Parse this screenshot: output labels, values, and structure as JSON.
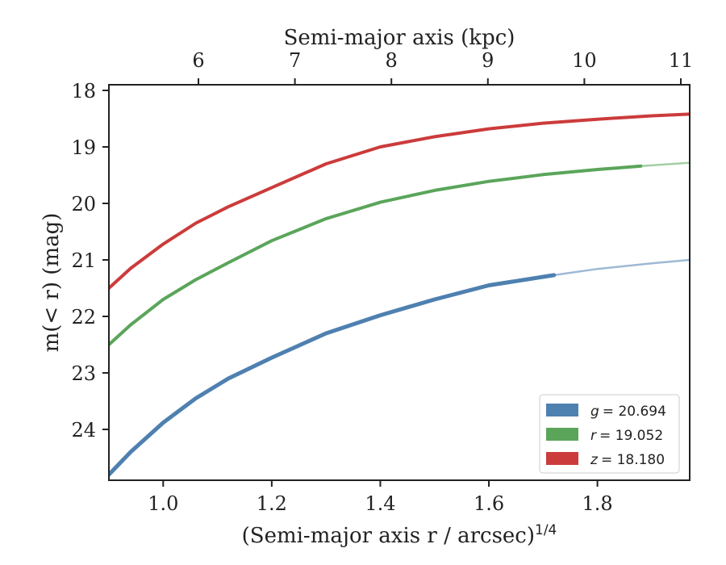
{
  "chart_data": {
    "type": "line",
    "xlabel": "(Semi-major axis r / arcsec)",
    "xlabel_sup": "1/4",
    "ylabel": "m(< r) (mag)",
    "top_xlabel": "Semi-major axis (kpc)",
    "xlim": [
      0.9,
      1.97
    ],
    "ylim": [
      24.9,
      17.9
    ],
    "y_inverted": true,
    "x_ticks": [
      "1.0",
      "1.2",
      "1.4",
      "1.6",
      "1.8"
    ],
    "y_ticks": [
      "18",
      "19",
      "20",
      "21",
      "22",
      "23",
      "24"
    ],
    "top_ticks": [
      "6",
      "7",
      "8",
      "9",
      "10",
      "11"
    ],
    "top_tick_values_kpc": [
      6,
      7,
      8,
      9,
      10,
      11
    ],
    "legend_position": "lower-right",
    "series": [
      {
        "name": "g = 20.694",
        "legend_symbol": "g",
        "legend_value": "= 20.694",
        "color": "#4e80b0",
        "x": [
          0.9,
          0.94,
          1.0,
          1.06,
          1.12,
          1.2,
          1.3,
          1.4,
          1.5,
          1.6,
          1.72,
          1.8,
          1.9,
          1.97
        ],
        "y": [
          24.8,
          24.4,
          23.88,
          23.45,
          23.1,
          22.73,
          22.3,
          21.98,
          21.7,
          21.45,
          21.27,
          21.16,
          21.06,
          21.0
        ],
        "solid_until_x": 1.72
      },
      {
        "name": "r = 19.052",
        "legend_symbol": "r",
        "legend_value": "= 19.052",
        "color": "#5aa55a",
        "x": [
          0.9,
          0.94,
          1.0,
          1.06,
          1.12,
          1.2,
          1.3,
          1.4,
          1.5,
          1.6,
          1.7,
          1.8,
          1.88,
          1.97
        ],
        "y": [
          22.5,
          22.15,
          21.7,
          21.35,
          21.05,
          20.66,
          20.27,
          19.98,
          19.77,
          19.61,
          19.49,
          19.4,
          19.34,
          19.28
        ],
        "solid_until_x": 1.88
      },
      {
        "name": "z = 18.180",
        "legend_symbol": "z",
        "legend_value": "= 18.180",
        "color": "#cc3b3b",
        "x": [
          0.9,
          0.94,
          1.0,
          1.06,
          1.12,
          1.2,
          1.3,
          1.4,
          1.5,
          1.6,
          1.7,
          1.8,
          1.9,
          1.97
        ],
        "y": [
          21.5,
          21.15,
          20.72,
          20.35,
          20.06,
          19.72,
          19.3,
          19.0,
          18.82,
          18.68,
          18.58,
          18.51,
          18.45,
          18.42
        ],
        "solid_until_x": 1.97
      }
    ]
  }
}
